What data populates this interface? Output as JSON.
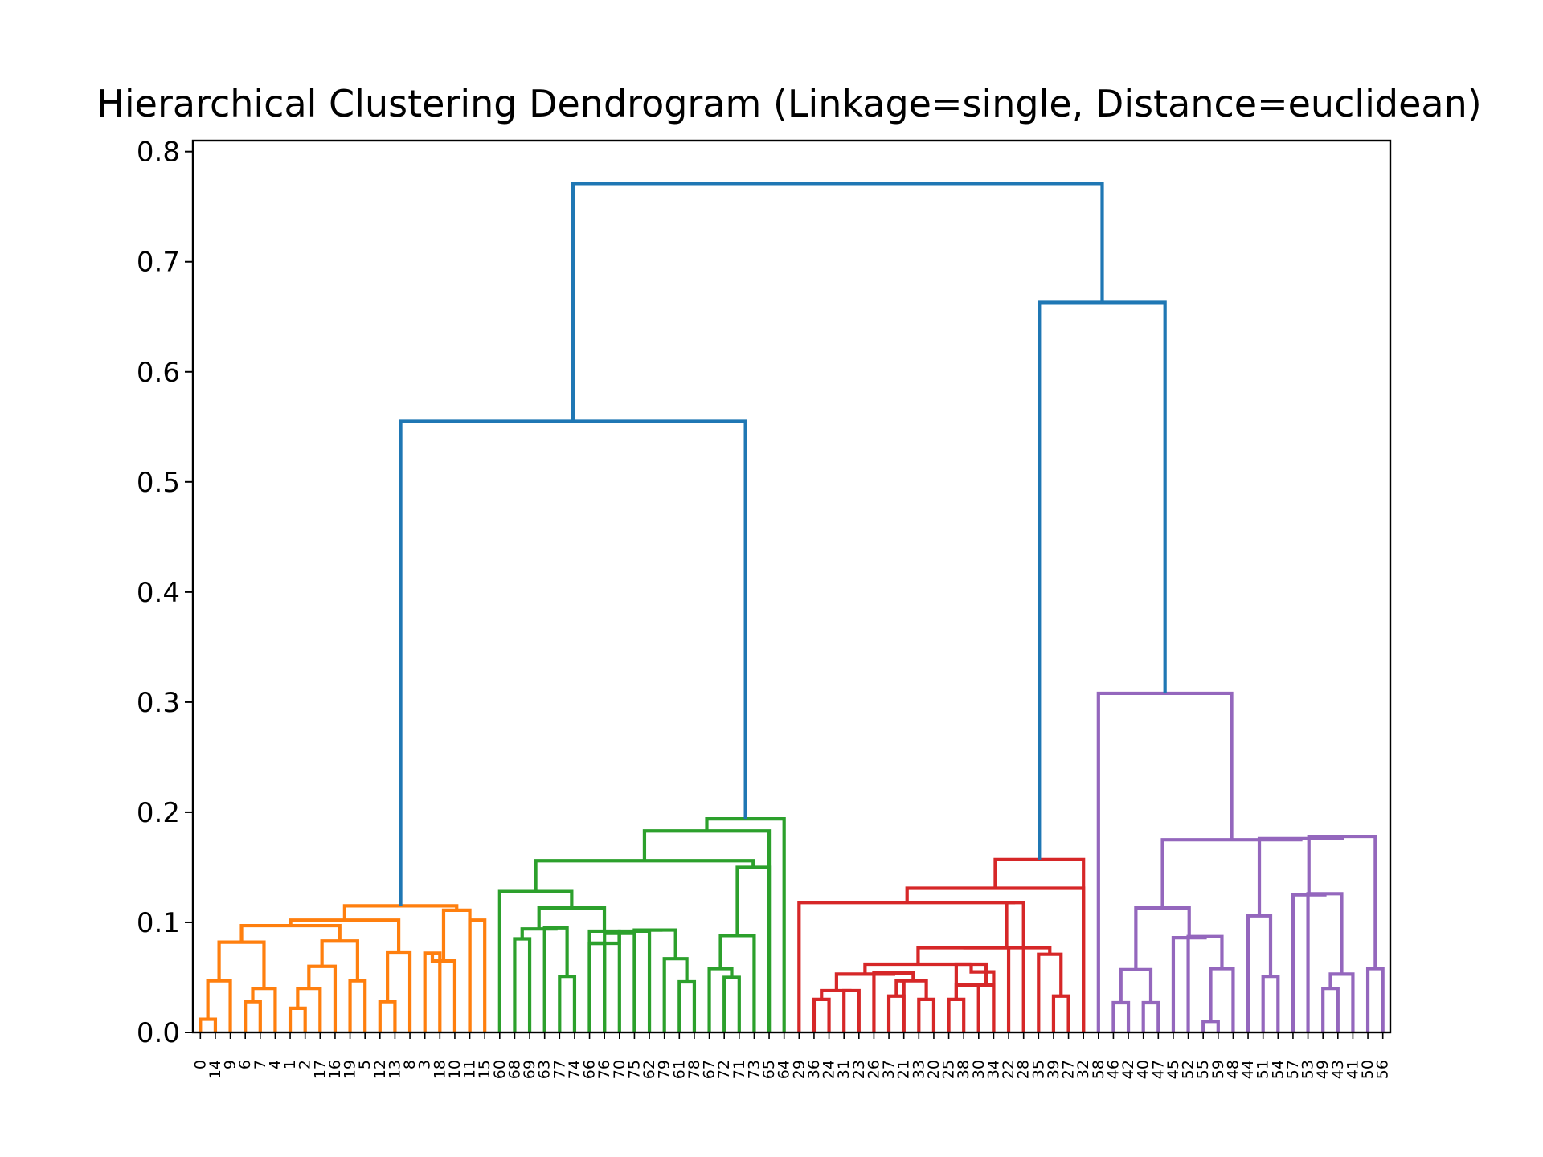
{
  "chart_data": {
    "type": "dendrogram",
    "title": "Hierarchical Clustering Dendrogram (Linkage=single, Distance=euclidean)",
    "xlabel": "",
    "ylabel": "",
    "ylim": [
      0,
      0.81
    ],
    "yticks": [
      "0.0",
      "0.1",
      "0.2",
      "0.3",
      "0.4",
      "0.5",
      "0.6",
      "0.7",
      "0.8"
    ],
    "ytick_values": [
      0,
      0.1,
      0.2,
      0.3,
      0.4,
      0.5,
      0.6,
      0.7,
      0.8
    ],
    "grid": false,
    "leaf_order": [
      0,
      14,
      9,
      6,
      7,
      4,
      1,
      2,
      17,
      16,
      19,
      5,
      12,
      13,
      8,
      3,
      18,
      10,
      11,
      15,
      60,
      68,
      69,
      63,
      77,
      74,
      66,
      76,
      70,
      75,
      62,
      79,
      61,
      78,
      67,
      72,
      71,
      73,
      65,
      64,
      29,
      36,
      24,
      31,
      23,
      26,
      37,
      21,
      33,
      20,
      25,
      38,
      30,
      34,
      22,
      28,
      35,
      39,
      27,
      32,
      58,
      46,
      42,
      40,
      47,
      45,
      52,
      55,
      59,
      48,
      44,
      51,
      54,
      57,
      53,
      49,
      43,
      41,
      50,
      56
    ],
    "colors": {
      "cluster_1": "#ff7f0e",
      "cluster_2": "#2ca02c",
      "cluster_3": "#d62728",
      "cluster_4": "#9467bd",
      "above_threshold": "#1f77b4"
    },
    "links": [
      {
        "l": 0,
        "r": 1,
        "h": 0.012,
        "c": "cluster_1"
      },
      {
        "l": 3,
        "r": 4,
        "h": 0.028,
        "c": "cluster_1"
      },
      {
        "l": 6,
        "r": 7,
        "h": 0.022,
        "c": "cluster_1"
      },
      {
        "l": 10,
        "r": 11,
        "h": 0.047,
        "c": "cluster_1"
      },
      {
        "l": 12,
        "r": 13,
        "h": 0.028,
        "c": "cluster_1"
      },
      {
        "l": 16,
        "r": 17,
        "h": 0.065,
        "c": "cluster_1"
      },
      {
        "l": 20,
        "r": 21,
        "h": 0.085,
        "c": "cluster_2"
      },
      {
        "l": 23,
        "r": 24,
        "h": 0.051,
        "c": "cluster_2"
      },
      {
        "l": 31,
        "r": 32,
        "h": 0.046,
        "c": "cluster_2"
      },
      {
        "l": 34,
        "r": 35,
        "h": 0.05,
        "c": "cluster_2"
      },
      {
        "l": 41,
        "r": 42,
        "h": 0.03,
        "c": "cluster_3"
      },
      {
        "l": 43,
        "r": 44,
        "h": 0.038,
        "c": "cluster_3"
      },
      {
        "l": 46,
        "r": 47,
        "h": 0.033,
        "c": "cluster_3"
      },
      {
        "l": 48,
        "r": 49,
        "h": 0.03,
        "c": "cluster_3"
      },
      {
        "l": 50,
        "r": 51,
        "h": 0.03,
        "c": "cluster_3"
      },
      {
        "l": 52,
        "r": 53,
        "h": 0.043,
        "c": "cluster_3"
      },
      {
        "l": 57,
        "r": 58,
        "h": 0.033,
        "c": "cluster_3"
      },
      {
        "l": 61,
        "r": 62,
        "h": 0.027,
        "c": "cluster_4"
      },
      {
        "l": 63,
        "r": 64,
        "h": 0.027,
        "c": "cluster_4"
      },
      {
        "l": 67,
        "r": 68,
        "h": 0.01,
        "c": "cluster_4"
      },
      {
        "l": 71,
        "r": 72,
        "h": 0.051,
        "c": "cluster_4"
      },
      {
        "l": 75,
        "r": 76,
        "h": 0.04,
        "c": "cluster_4"
      },
      {
        "l": 78,
        "r": 79,
        "h": 0.058,
        "c": "cluster_4"
      },
      {
        "l": 80,
        "r": 2,
        "h": 0.047,
        "c": "cluster_1"
      },
      {
        "l": 5,
        "r": 81,
        "h": 0.04,
        "c": "cluster_1"
      },
      {
        "l": 82,
        "r": 8,
        "h": 0.04,
        "c": "cluster_1"
      },
      {
        "l": 87,
        "r": 9,
        "h": 0.06,
        "c": "cluster_1"
      },
      {
        "l": 84,
        "r": 85,
        "h": 0.082,
        "c": "cluster_1"
      },
      {
        "l": 86,
        "r": 83,
        "h": 0.082,
        "c": "cluster_1"
      },
      {
        "l": 14,
        "r": 108,
        "h": 0.073,
        "c": "cluster_1"
      },
      {
        "l": 15,
        "r": 85,
        "h": 0.073,
        "c": "cluster_1"
      },
      {
        "l": 113,
        "r": 18,
        "h": 0.111,
        "c": "cluster_1"
      },
      {
        "l": 19,
        "r": 19,
        "h": 0.0,
        "c": "cluster_1"
      },
      {
        "l": 96,
        "r": 19,
        "h": 0.103,
        "c": "cluster_1"
      },
      {
        "l": 109,
        "r": 110,
        "h": 0.103,
        "c": "cluster_1"
      },
      {
        "l": 112,
        "r": 114,
        "h": 0.115,
        "c": "cluster_1"
      }
    ]
  }
}
